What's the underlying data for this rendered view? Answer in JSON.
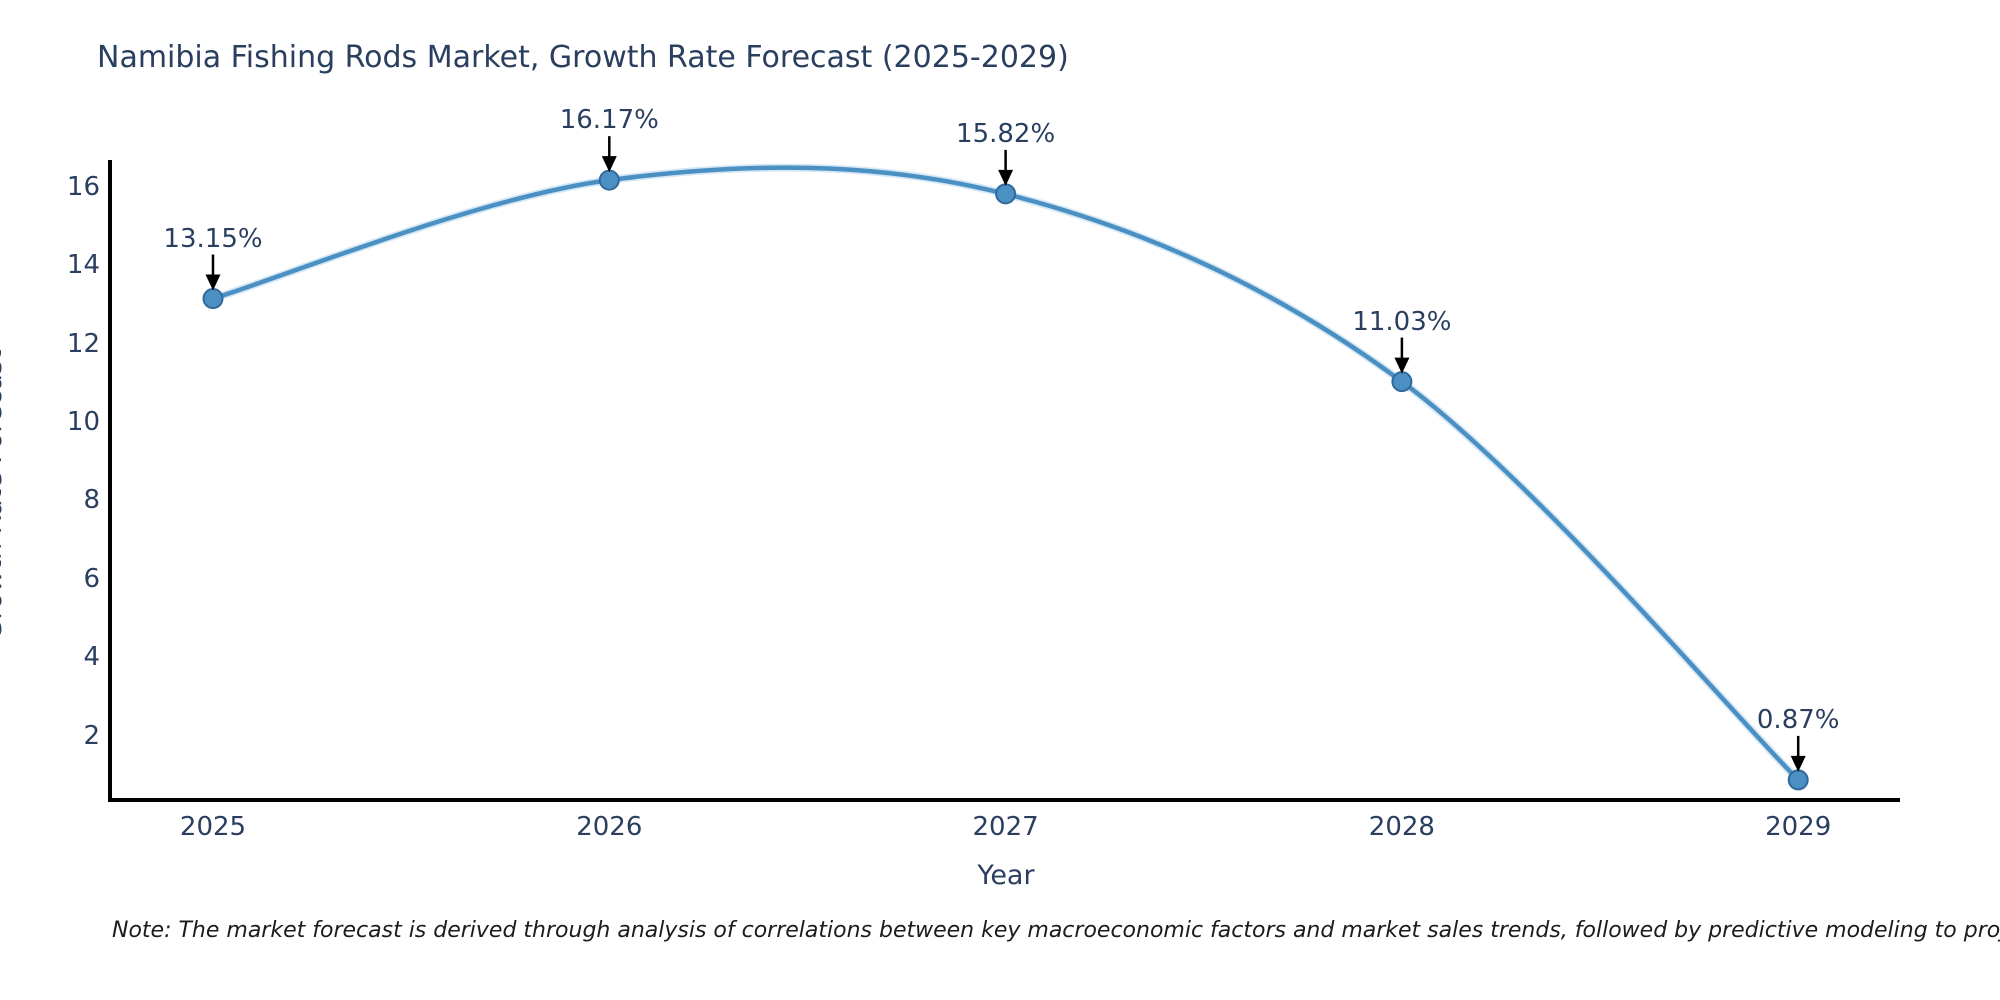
{
  "chart_data": {
    "type": "line",
    "title": "Namibia Fishing Rods Market, Growth Rate Forecast (2025-2029)",
    "xlabel": "Year",
    "ylabel": "Growth Rate Forecast",
    "categories": [
      2025,
      2026,
      2027,
      2028,
      2029
    ],
    "values": [
      13.15,
      16.17,
      15.82,
      11.03,
      0.87
    ],
    "point_labels": [
      "13.15%",
      "16.17%",
      "15.82%",
      "11.03%",
      "0.87%"
    ],
    "yticks": [
      2,
      4,
      6,
      8,
      10,
      12,
      14,
      16
    ],
    "ylim": [
      0,
      17
    ],
    "line_shape": "spline",
    "grid": false,
    "legend": "none",
    "line_color": "#4a90c2",
    "line_halo_color": "#b5d5ec",
    "marker_color": "#4a90c2",
    "marker_edge_color": "#30699c",
    "axis_color": "#000000",
    "text_color": "#2a3f5f",
    "annotation_arrow_color": "#000000"
  },
  "note": {
    "text": "Note: The market forecast is derived through analysis of correlations between key macroeconomic factors and market sales trends, followed by predictive modeling to project future sales"
  }
}
